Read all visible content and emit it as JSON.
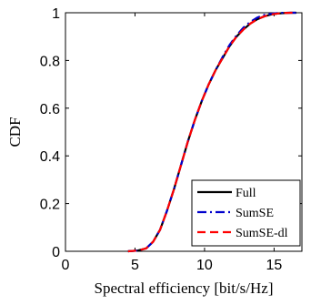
{
  "chart_data": {
    "type": "line",
    "title": "",
    "xlabel": "Spectral efficiency [bit/s/Hz]",
    "ylabel": "CDF",
    "xlim": [
      0,
      17
    ],
    "ylim": [
      0,
      1
    ],
    "xticks": [
      0,
      5,
      10,
      15
    ],
    "yticks": [
      0,
      0.2,
      0.4,
      0.6,
      0.8,
      1
    ],
    "xtick_labels": [
      "0",
      "5",
      "10",
      "15"
    ],
    "ytick_labels": [
      "0",
      "0.2",
      "0.4",
      "0.6",
      "0.8",
      "1"
    ],
    "grid": false,
    "legend_position": "bottom-right",
    "series": [
      {
        "name": "Full",
        "color": "#000000",
        "style": "solid",
        "x": [
          4.5,
          5.2,
          5.8,
          6.3,
          6.8,
          7.3,
          7.8,
          8.3,
          8.8,
          9.3,
          9.8,
          10.3,
          10.8,
          11.3,
          11.8,
          12.3,
          12.8,
          13.3,
          13.8,
          14.3,
          14.8,
          15.3,
          15.8,
          16.2,
          16.6
        ],
        "y": [
          0.0,
          0.003,
          0.012,
          0.04,
          0.09,
          0.17,
          0.26,
          0.36,
          0.46,
          0.55,
          0.63,
          0.7,
          0.76,
          0.81,
          0.86,
          0.9,
          0.93,
          0.955,
          0.973,
          0.985,
          0.993,
          0.997,
          0.999,
          1.0,
          1.0
        ]
      },
      {
        "name": "SumSE",
        "color": "#0000cc",
        "style": "dashdot",
        "x": [
          4.5,
          5.2,
          5.8,
          6.3,
          6.8,
          7.3,
          7.8,
          8.3,
          8.8,
          9.3,
          9.8,
          10.3,
          10.8,
          11.3,
          11.8,
          12.3,
          12.8,
          13.3,
          13.8,
          14.3,
          14.8,
          15.3,
          15.8,
          16.2,
          16.6
        ],
        "y": [
          0.0,
          0.003,
          0.012,
          0.04,
          0.09,
          0.17,
          0.26,
          0.36,
          0.46,
          0.55,
          0.63,
          0.7,
          0.76,
          0.815,
          0.865,
          0.905,
          0.938,
          0.962,
          0.98,
          0.991,
          0.996,
          0.999,
          1.0,
          1.0,
          1.0
        ]
      },
      {
        "name": "SumSE-dl",
        "color": "#ff0000",
        "style": "dashed",
        "x": [
          4.5,
          5.2,
          5.8,
          6.3,
          6.8,
          7.3,
          7.8,
          8.3,
          8.8,
          9.3,
          9.8,
          10.3,
          10.8,
          11.3,
          11.8,
          12.3,
          12.8,
          13.3,
          13.8,
          14.3,
          14.8,
          15.3,
          15.8,
          16.2,
          16.6
        ],
        "y": [
          0.0,
          0.003,
          0.012,
          0.04,
          0.09,
          0.17,
          0.26,
          0.36,
          0.46,
          0.55,
          0.63,
          0.7,
          0.76,
          0.81,
          0.86,
          0.9,
          0.93,
          0.955,
          0.973,
          0.985,
          0.993,
          0.997,
          0.999,
          1.0,
          1.0
        ]
      }
    ]
  }
}
